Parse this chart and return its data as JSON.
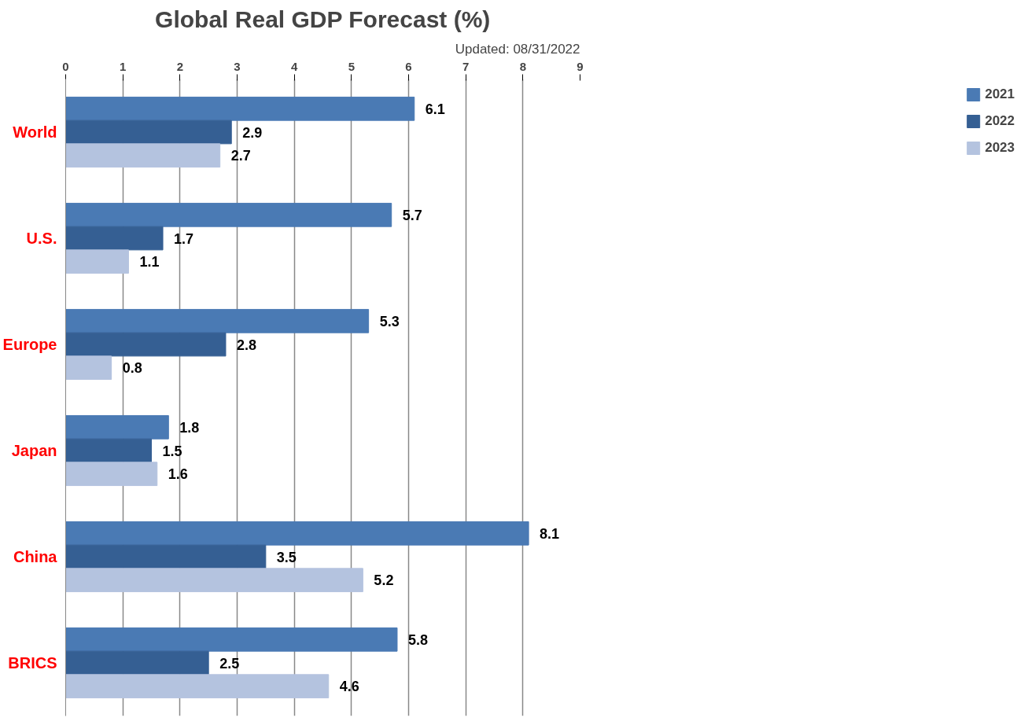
{
  "chart_data": {
    "type": "bar",
    "orientation": "horizontal",
    "title": "Global Real GDP Forecast (%)",
    "annotations": [
      "Updated: 08/31/2022"
    ],
    "categories": [
      "World",
      "U.S.",
      "Europe",
      "Japan",
      "China",
      "BRICS"
    ],
    "series": [
      {
        "name": "2021",
        "color": "#4a7ab4",
        "values": [
          6.1,
          5.7,
          5.3,
          1.8,
          8.1,
          5.8
        ]
      },
      {
        "name": "2022",
        "color": "#355f93",
        "values": [
          2.9,
          1.7,
          2.8,
          1.5,
          3.5,
          2.5
        ]
      },
      {
        "name": "2023",
        "color": "#b4c3df",
        "values": [
          2.7,
          1.1,
          0.8,
          1.6,
          5.2,
          4.6
        ]
      }
    ],
    "xlim": [
      0,
      9
    ],
    "xticks": [
      0,
      1,
      2,
      3,
      4,
      5,
      6,
      7,
      8,
      9
    ],
    "grid": "x",
    "legend": "right",
    "data_labels": true
  }
}
